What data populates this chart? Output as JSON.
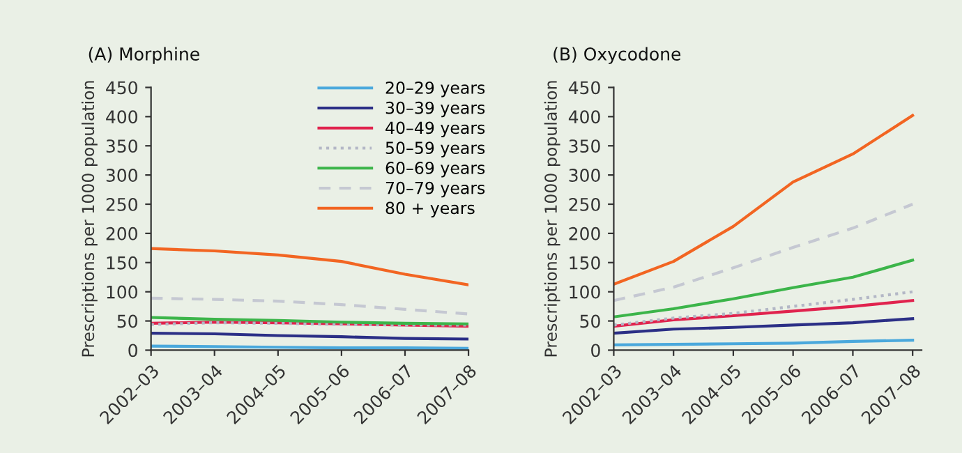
{
  "chart_data": [
    {
      "type": "line",
      "title": "(A) Morphine",
      "ylabel": "Prescriptions per 1000 population",
      "categories": [
        "2002–03",
        "2003–04",
        "2004–05",
        "2005–06",
        "2006–07",
        "2007–08"
      ],
      "ylim": [
        0,
        450
      ],
      "yticks": [
        0,
        50,
        100,
        150,
        200,
        250,
        300,
        350,
        400,
        450
      ],
      "grid": false,
      "legend": "top right",
      "marker": "none",
      "series": [
        {
          "name": "20–29 years",
          "color": "#4aa8dc",
          "line_style": "solid",
          "values": [
            7,
            6,
            5,
            4,
            4,
            3
          ]
        },
        {
          "name": "30–39 years",
          "color": "#2b2f86",
          "line_style": "solid",
          "values": [
            29,
            28,
            25,
            23,
            20,
            19
          ]
        },
        {
          "name": "40–49 years",
          "color": "#e0234e",
          "line_style": "solid",
          "values": [
            46,
            48,
            47,
            45,
            43,
            41
          ]
        },
        {
          "name": "50–59 years",
          "color": "#b3b7c6",
          "line_style": "dotted",
          "values": [
            44,
            47,
            46,
            44,
            43,
            43
          ]
        },
        {
          "name": "60–69 years",
          "color": "#3cb54a",
          "line_style": "solid",
          "values": [
            56,
            53,
            51,
            48,
            46,
            45
          ]
        },
        {
          "name": "70–79 years",
          "color": "#c5c8d2",
          "line_style": "dashed",
          "values": [
            89,
            87,
            84,
            78,
            70,
            62
          ]
        },
        {
          "name": "80 + years",
          "color": "#f26522",
          "line_style": "solid",
          "values": [
            174,
            170,
            163,
            152,
            130,
            112
          ]
        }
      ]
    },
    {
      "type": "line",
      "title": "(B) Oxycodone",
      "ylabel": "Prescriptions per 1000 population",
      "categories": [
        "2002–03",
        "2003–04",
        "2004–05",
        "2005–06",
        "2006–07",
        "2007–08"
      ],
      "ylim": [
        0,
        450
      ],
      "yticks": [
        0,
        50,
        100,
        150,
        200,
        250,
        300,
        350,
        400,
        450
      ],
      "grid": false,
      "marker": "none",
      "series": [
        {
          "color": "#4aa8dc",
          "line_style": "solid",
          "values": [
            9,
            10,
            11,
            12,
            15,
            17
          ]
        },
        {
          "color": "#2b2f86",
          "line_style": "solid",
          "values": [
            29,
            36,
            39,
            43,
            47,
            54
          ]
        },
        {
          "color": "#e0234e",
          "line_style": "solid",
          "values": [
            41,
            52,
            59,
            67,
            75,
            85
          ]
        },
        {
          "color": "#b3b7c6",
          "line_style": "dotted",
          "values": [
            43,
            55,
            63,
            75,
            87,
            100
          ]
        },
        {
          "color": "#3cb54a",
          "line_style": "solid",
          "values": [
            57,
            71,
            88,
            107,
            125,
            154
          ]
        },
        {
          "color": "#c5c8d2",
          "line_style": "dashed",
          "values": [
            85,
            108,
            141,
            176,
            209,
            250
          ]
        },
        {
          "color": "#f26522",
          "line_style": "solid",
          "values": [
            113,
            152,
            212,
            288,
            336,
            402
          ]
        }
      ]
    }
  ]
}
